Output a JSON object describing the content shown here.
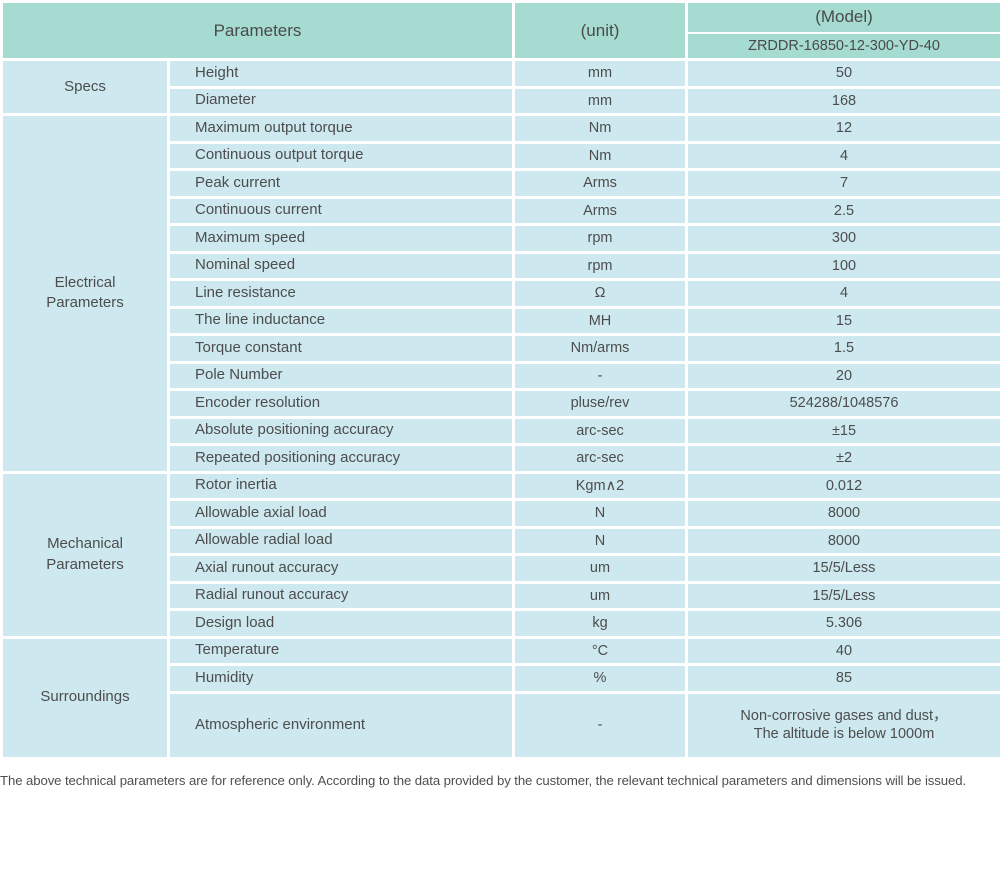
{
  "header": {
    "parameters_label": "Parameters",
    "unit_label": "(unit)",
    "model_label": "(Model)",
    "model_number": "ZRDDR-16850-12-300-YD-40"
  },
  "sections": [
    {
      "group": "Specs",
      "rows": [
        {
          "name": "Height",
          "unit": "mm",
          "value": "50"
        },
        {
          "name": "Diameter",
          "unit": "mm",
          "value": "168"
        }
      ]
    },
    {
      "group": "Electrical Parameters",
      "rows": [
        {
          "name": "Maximum output torque",
          "unit": "Nm",
          "value": "12"
        },
        {
          "name": "Continuous output torque",
          "unit": "Nm",
          "value": "4"
        },
        {
          "name": "Peak current",
          "unit": "Arms",
          "value": "7"
        },
        {
          "name": "Continuous current",
          "unit": "Arms",
          "value": "2.5"
        },
        {
          "name": "Maximum speed",
          "unit": "rpm",
          "value": "300"
        },
        {
          "name": "Nominal speed",
          "unit": "rpm",
          "value": "100"
        },
        {
          "name": "Line resistance",
          "unit": "Ω",
          "value": "4"
        },
        {
          "name": "The line inductance",
          "unit": "MH",
          "value": "15"
        },
        {
          "name": "Torque constant",
          "unit": "Nm/arms",
          "value": "1.5"
        },
        {
          "name": "Pole Number",
          "unit": "-",
          "value": "20"
        },
        {
          "name": "Encoder resolution",
          "unit": "pluse/rev",
          "value": "524288/1048576"
        },
        {
          "name": "Absolute positioning accuracy",
          "unit": "arc-sec",
          "value": "±15"
        },
        {
          "name": "Repeated positioning accuracy",
          "unit": "arc-sec",
          "value": "±2"
        }
      ]
    },
    {
      "group": "Mechanical Parameters",
      "rows": [
        {
          "name": "Rotor inertia",
          "unit": "Kgm∧2",
          "value": "0.012"
        },
        {
          "name": "Allowable axial load",
          "unit": "N",
          "value": "8000"
        },
        {
          "name": "Allowable radial load",
          "unit": "N",
          "value": "8000"
        },
        {
          "name": "Axial runout accuracy",
          "unit": "um",
          "value": "15/5/Less"
        },
        {
          "name": "Radial runout accuracy",
          "unit": "um",
          "value": "15/5/Less"
        },
        {
          "name": "Design load",
          "unit": "kg",
          "value": "5.306"
        }
      ]
    },
    {
      "group": "Surroundings",
      "rows": [
        {
          "name": "Temperature",
          "unit": "°C",
          "value": "40"
        },
        {
          "name": "Humidity",
          "unit": "%",
          "value": "85"
        },
        {
          "name": "Atmospheric environment",
          "unit": "-",
          "value": "Non-corrosive gases and dust，\nThe altitude is below 1000m",
          "tall": true
        }
      ]
    }
  ],
  "footer": {
    "note": "The above technical parameters are for reference only. According to the data provided by the customer, the relevant technical parameters and dimensions will be issued."
  },
  "colors": {
    "header_bg": "#a6dbd1",
    "row_bg": "#cde8ee",
    "border": "#ffffff",
    "text": "#4d4d4d"
  }
}
